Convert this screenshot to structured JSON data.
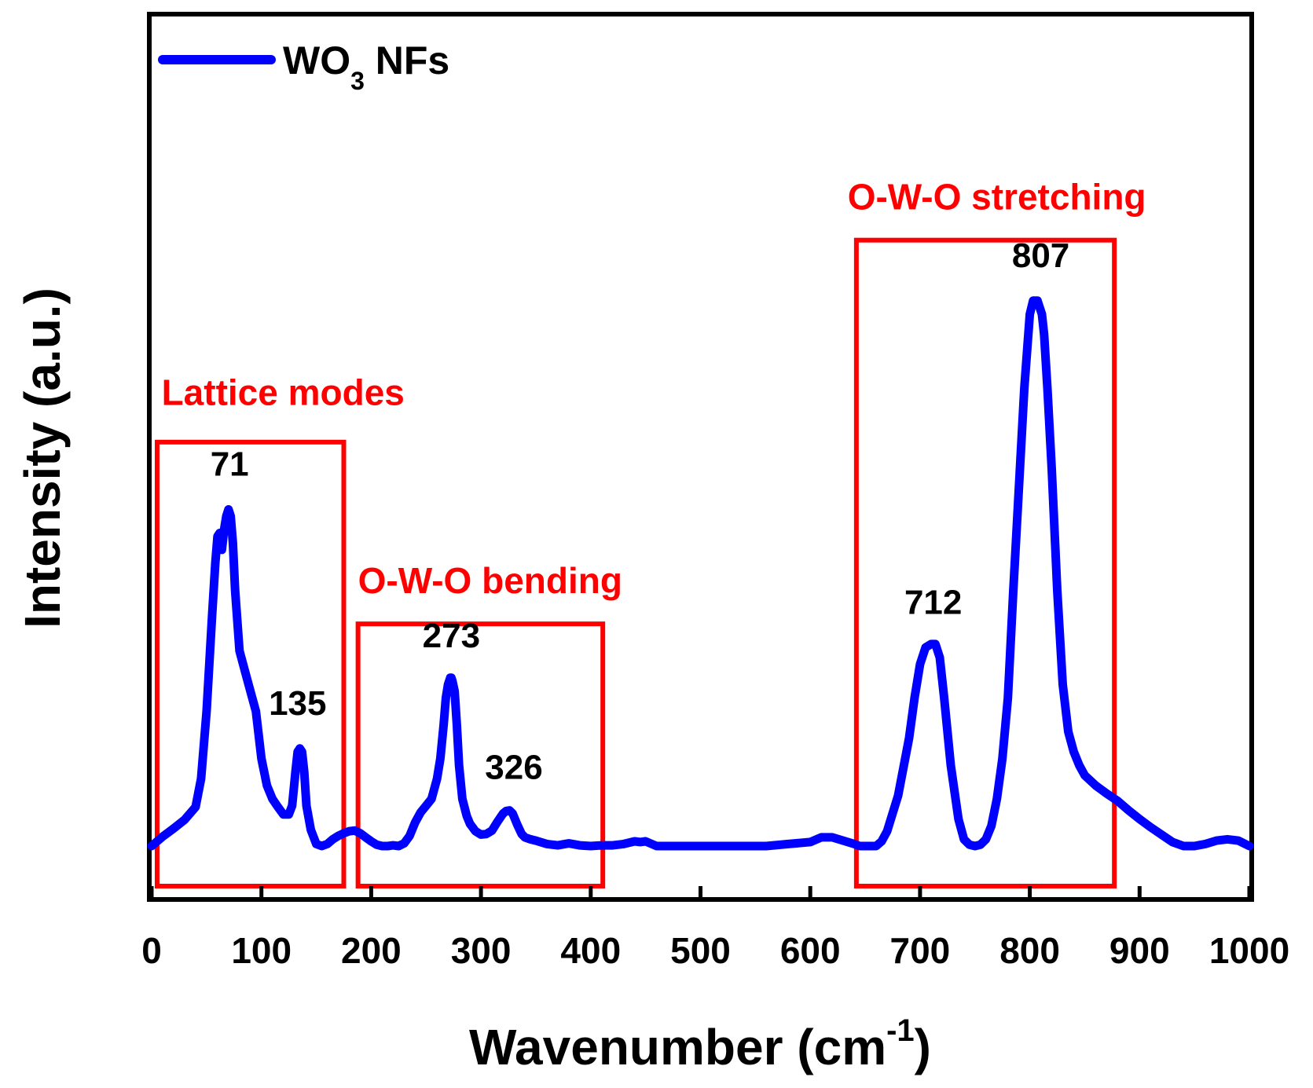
{
  "chart_data": {
    "type": "line",
    "title": "",
    "xlabel": "Wavenumber (cm",
    "xlabel_sup": "-1",
    "xlabel_end": ")",
    "ylabel": "Intensity (a.u.)",
    "xlim": [
      0,
      1000
    ],
    "ylim": [
      0,
      1
    ],
    "x_ticks": [
      0,
      100,
      200,
      300,
      400,
      500,
      600,
      700,
      800,
      900,
      1000
    ],
    "x_tick_labels": [
      "0",
      "100",
      "200",
      "300",
      "400",
      "500",
      "600",
      "700",
      "800",
      "900",
      "1000"
    ],
    "y_ticks_shown": false,
    "grid": false,
    "legend": {
      "position": "top-left",
      "entries": [
        {
          "name": "WO",
          "sub": "3",
          "suffix": " NFs"
        }
      ]
    },
    "series": [
      {
        "name": "WO3 NFs",
        "color": "#0000ff",
        "x": [
          0,
          10,
          20,
          30,
          40,
          45,
          50,
          55,
          58,
          60,
          62,
          64,
          66,
          68,
          70,
          72,
          74,
          76,
          80,
          85,
          90,
          95,
          100,
          105,
          110,
          115,
          120,
          125,
          128,
          131,
          133,
          135,
          137,
          139,
          141,
          145,
          150,
          155,
          160,
          165,
          170,
          175,
          180,
          185,
          190,
          195,
          200,
          205,
          210,
          215,
          220,
          225,
          230,
          235,
          240,
          245,
          250,
          255,
          260,
          263,
          266,
          268,
          270,
          272,
          273,
          274,
          276,
          278,
          280,
          283,
          287,
          290,
          295,
          300,
          305,
          310,
          315,
          320,
          323,
          326,
          329,
          333,
          337,
          340,
          345,
          350,
          360,
          370,
          380,
          390,
          400,
          410,
          420,
          430,
          440,
          445,
          450,
          460,
          480,
          500,
          520,
          540,
          560,
          580,
          600,
          610,
          620,
          630,
          640,
          645,
          650,
          655,
          660,
          665,
          670,
          680,
          690,
          695,
          700,
          705,
          710,
          712,
          714,
          718,
          722,
          728,
          735,
          740,
          745,
          750,
          755,
          760,
          765,
          770,
          775,
          780,
          785,
          790,
          795,
          800,
          803,
          805,
          807,
          809,
          811,
          813,
          816,
          820,
          825,
          830,
          835,
          840,
          845,
          850,
          860,
          870,
          880,
          890,
          900,
          910,
          920,
          930,
          940,
          950,
          960,
          970,
          980,
          990,
          1000
        ],
        "y": [
          0.0,
          0.014,
          0.026,
          0.039,
          0.058,
          0.1,
          0.2,
          0.34,
          0.42,
          0.46,
          0.465,
          0.44,
          0.47,
          0.49,
          0.5,
          0.49,
          0.45,
          0.38,
          0.29,
          0.26,
          0.23,
          0.2,
          0.13,
          0.09,
          0.07,
          0.058,
          0.047,
          0.047,
          0.06,
          0.11,
          0.14,
          0.145,
          0.14,
          0.11,
          0.06,
          0.024,
          0.003,
          0.0,
          0.003,
          0.01,
          0.015,
          0.019,
          0.022,
          0.023,
          0.019,
          0.013,
          0.007,
          0.002,
          0.0,
          0.0,
          0.001,
          0.0,
          0.004,
          0.015,
          0.035,
          0.05,
          0.06,
          0.07,
          0.1,
          0.13,
          0.18,
          0.22,
          0.24,
          0.25,
          0.25,
          0.245,
          0.23,
          0.18,
          0.12,
          0.07,
          0.045,
          0.033,
          0.022,
          0.017,
          0.018,
          0.023,
          0.036,
          0.048,
          0.052,
          0.053,
          0.048,
          0.032,
          0.018,
          0.013,
          0.01,
          0.008,
          0.003,
          0.001,
          0.004,
          0.001,
          0.0,
          0.001,
          0.001,
          0.003,
          0.007,
          0.006,
          0.007,
          0.0,
          0.0,
          0.0,
          0.0,
          0.0,
          0.0,
          0.003,
          0.006,
          0.013,
          0.013,
          0.008,
          0.003,
          0.0,
          0.0,
          0.0,
          0.0,
          0.007,
          0.022,
          0.075,
          0.16,
          0.22,
          0.27,
          0.295,
          0.3,
          0.3,
          0.3,
          0.28,
          0.22,
          0.12,
          0.04,
          0.01,
          0.002,
          0.0,
          0.002,
          0.01,
          0.03,
          0.07,
          0.13,
          0.22,
          0.38,
          0.53,
          0.68,
          0.79,
          0.81,
          0.81,
          0.81,
          0.8,
          0.79,
          0.76,
          0.68,
          0.56,
          0.38,
          0.24,
          0.17,
          0.14,
          0.12,
          0.105,
          0.09,
          0.078,
          0.067,
          0.053,
          0.04,
          0.028,
          0.017,
          0.006,
          0.0,
          0.0,
          0.003,
          0.008,
          0.01,
          0.008,
          0.0
        ]
      }
    ],
    "peak_labels": [
      {
        "text": "71",
        "x": 71,
        "y": 0.55
      },
      {
        "text": "135",
        "x": 133,
        "y": 0.195
      },
      {
        "text": "273",
        "x": 273,
        "y": 0.295
      },
      {
        "text": "326",
        "x": 330,
        "y": 0.1
      },
      {
        "text": "712",
        "x": 712,
        "y": 0.345
      },
      {
        "text": "807",
        "x": 810,
        "y": 0.86
      }
    ],
    "regions": [
      {
        "label": "Lattice modes",
        "x_start": 5,
        "x_end": 175,
        "y_top": 0.6,
        "label_x": 9,
        "label_y": 0.655
      },
      {
        "label": "O-W-O bending",
        "x_start": 188,
        "x_end": 411,
        "y_top": 0.33,
        "label_x": 188,
        "label_y": 0.376
      },
      {
        "label": "O-W-O stretching",
        "x_start": 642,
        "x_end": 877,
        "y_top": 0.9,
        "label_x": 634,
        "label_y": 0.946
      }
    ],
    "region_color": "#ff0000"
  }
}
